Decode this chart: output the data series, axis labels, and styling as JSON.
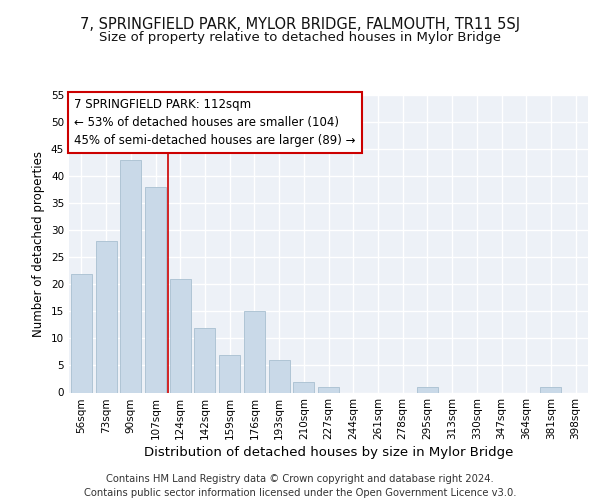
{
  "title": "7, SPRINGFIELD PARK, MYLOR BRIDGE, FALMOUTH, TR11 5SJ",
  "subtitle": "Size of property relative to detached houses in Mylor Bridge",
  "xlabel": "Distribution of detached houses by size in Mylor Bridge",
  "ylabel": "Number of detached properties",
  "categories": [
    "56sqm",
    "73sqm",
    "90sqm",
    "107sqm",
    "124sqm",
    "142sqm",
    "159sqm",
    "176sqm",
    "193sqm",
    "210sqm",
    "227sqm",
    "244sqm",
    "261sqm",
    "278sqm",
    "295sqm",
    "313sqm",
    "330sqm",
    "347sqm",
    "364sqm",
    "381sqm",
    "398sqm"
  ],
  "values": [
    22,
    28,
    43,
    38,
    21,
    12,
    7,
    15,
    6,
    2,
    1,
    0,
    0,
    0,
    1,
    0,
    0,
    0,
    0,
    1,
    0
  ],
  "bar_color": "#c9d9e8",
  "bar_edge_color": "#a8bfd0",
  "vline_x": 3.5,
  "vline_color": "#cc0000",
  "annotation_text": "7 SPRINGFIELD PARK: 112sqm\n← 53% of detached houses are smaller (104)\n45% of semi-detached houses are larger (89) →",
  "annotation_box_color": "#ffffff",
  "annotation_box_edge": "#cc0000",
  "ylim": [
    0,
    55
  ],
  "yticks": [
    0,
    5,
    10,
    15,
    20,
    25,
    30,
    35,
    40,
    45,
    50,
    55
  ],
  "footer": "Contains HM Land Registry data © Crown copyright and database right 2024.\nContains public sector information licensed under the Open Government Licence v3.0.",
  "background_color": "#edf1f7",
  "grid_color": "#ffffff",
  "title_fontsize": 10.5,
  "subtitle_fontsize": 9.5,
  "xlabel_fontsize": 9.5,
  "ylabel_fontsize": 8.5,
  "tick_fontsize": 7.5,
  "annotation_fontsize": 8.5,
  "footer_fontsize": 7.2
}
